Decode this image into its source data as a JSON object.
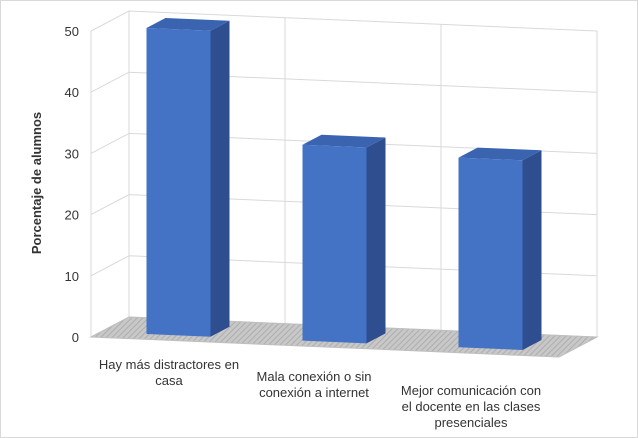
{
  "chart_data": {
    "type": "bar",
    "categories": [
      [
        "Hay más distractores en",
        "casa"
      ],
      [
        "Mala conexión o sin",
        "conexión a internet"
      ],
      [
        "Mejor comunicación con",
        "el docente en las clases",
        "presenciales"
      ]
    ],
    "values": [
      50,
      32,
      31
    ],
    "ylabel": "Porcentaje de alumnos",
    "ylim": [
      0,
      50
    ],
    "yticks": [
      0,
      10,
      20,
      30,
      40,
      50
    ],
    "grid": true,
    "legend": "none",
    "style": "3d-column",
    "colors": {
      "front": "#4472c4",
      "side": "#2e4e8f",
      "top": "#3a63b0",
      "floor": "#a6a6a6"
    }
  }
}
